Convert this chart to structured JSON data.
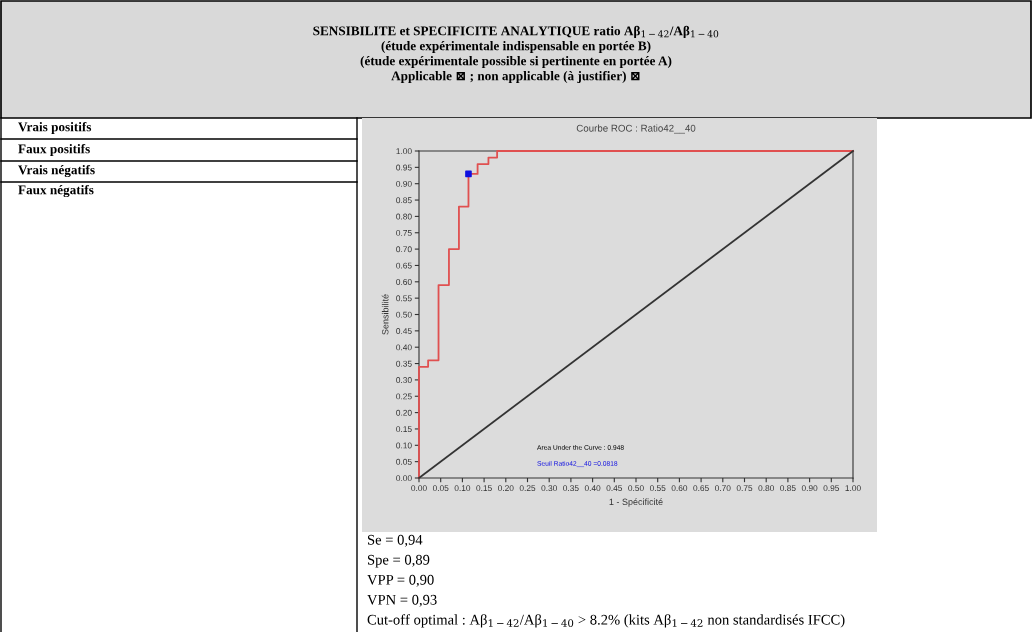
{
  "chart_data": {
    "type": "line",
    "title": "Courbe ROC : Ratio42__40",
    "xlabel": "1 - Spécificité",
    "ylabel": "Sensibilité",
    "series": [
      {
        "color": "#e05050",
        "x": [
          0,
          0,
          0.021,
          0.021,
          0.045,
          0.045,
          0.069,
          0.069,
          0.092,
          0.092,
          0.114,
          0.114,
          0.135,
          0.135,
          0.16,
          0.16,
          0.18,
          0.18,
          1
        ],
        "values": [
          0,
          0.34,
          0.34,
          0.36,
          0.36,
          0.59,
          0.59,
          0.7,
          0.7,
          0.83,
          0.83,
          0.93,
          0.93,
          0.96,
          0.96,
          0.98,
          0.98,
          1.0,
          1.0
        ]
      },
      {
        "color": "#333333",
        "x": [
          0,
          1
        ],
        "values": [
          0,
          1
        ]
      },
      {
        "type": "scatter",
        "color": "#1010e0",
        "marker": "square",
        "x": [
          0.114
        ],
        "values": [
          0.93
        ]
      }
    ],
    "xlim": [
      0,
      1
    ],
    "ylim": [
      0,
      1
    ],
    "xticks": [
      {
        "value": 0,
        "label": "0.00"
      },
      {
        "value": 0.05,
        "label": "0.05"
      },
      {
        "value": 0.1,
        "label": "0.10"
      },
      {
        "value": 0.15,
        "label": "0.15"
      },
      {
        "value": 0.2,
        "label": "0.20"
      },
      {
        "value": 0.25,
        "label": "0.25"
      },
      {
        "value": 0.3,
        "label": "0.30"
      },
      {
        "value": 0.35,
        "label": "0.35"
      },
      {
        "value": 0.4,
        "label": "0.40"
      },
      {
        "value": 0.45,
        "label": "0.45"
      },
      {
        "value": 0.5,
        "label": "0.50"
      },
      {
        "value": 0.55,
        "label": "0.55"
      },
      {
        "value": 0.6,
        "label": "0.60"
      },
      {
        "value": 0.65,
        "label": "0.65"
      },
      {
        "value": 0.7,
        "label": "0.70"
      },
      {
        "value": 0.75,
        "label": "0.75"
      },
      {
        "value": 0.8,
        "label": "0.80"
      },
      {
        "value": 0.85,
        "label": "0.85"
      },
      {
        "value": 0.9,
        "label": "0.90"
      },
      {
        "value": 0.95,
        "label": "0.95"
      },
      {
        "value": 1,
        "label": "1.00"
      }
    ],
    "yticks": [
      {
        "value": 0,
        "label": "0.00"
      },
      {
        "value": 0.05,
        "label": "0.05"
      },
      {
        "value": 0.1,
        "label": "0.10"
      },
      {
        "value": 0.15,
        "label": "0.15"
      },
      {
        "value": 0.2,
        "label": "0.20"
      },
      {
        "value": 0.25,
        "label": "0.25"
      },
      {
        "value": 0.3,
        "label": "0.30"
      },
      {
        "value": 0.35,
        "label": "0.35"
      },
      {
        "value": 0.4,
        "label": "0.40"
      },
      {
        "value": 0.45,
        "label": "0.45"
      },
      {
        "value": 0.5,
        "label": "0.50"
      },
      {
        "value": 0.55,
        "label": "0.55"
      },
      {
        "value": 0.6,
        "label": "0.60"
      },
      {
        "value": 0.65,
        "label": "0.65"
      },
      {
        "value": 0.7,
        "label": "0.70"
      },
      {
        "value": 0.75,
        "label": "0.75"
      },
      {
        "value": 0.8,
        "label": "0.80"
      },
      {
        "value": 0.85,
        "label": "0.85"
      },
      {
        "value": 0.9,
        "label": "0.90"
      },
      {
        "value": 0.95,
        "label": "0.95"
      },
      {
        "value": 1,
        "label": "1.00"
      }
    ],
    "grid": false,
    "legend": false,
    "annotations": [
      "SENSIBILITE et SPECIFICITE ANALYTIQUE ratio Aβ$_{1−42}$/Aβ$_{1−40}$",
      "(étude expérimentale indispensable en portée B)",
      "(étude expérimentale possible si pertinente en portée A)",
      "Applicable ⊠ ; non applicable (à justifier) ⊠",
      "Vrais positifs",
      "Faux positifs",
      "Vrais négatifs",
      "Faux négatifs",
      "Area Under the Curve : 0.948",
      "Seuil Ratio42__40 =0.0818",
      "Se = 0,94",
      "Spe = 0,89",
      "VPP = 0,90",
      "VPN = 0,93",
      "Cut-off optimal : Aβ$_{1−42}$/Aβ$_{1−40}$ > 8.2% (kits Aβ$_{1−42}$ non standardisés IFCC)"
    ]
  }
}
